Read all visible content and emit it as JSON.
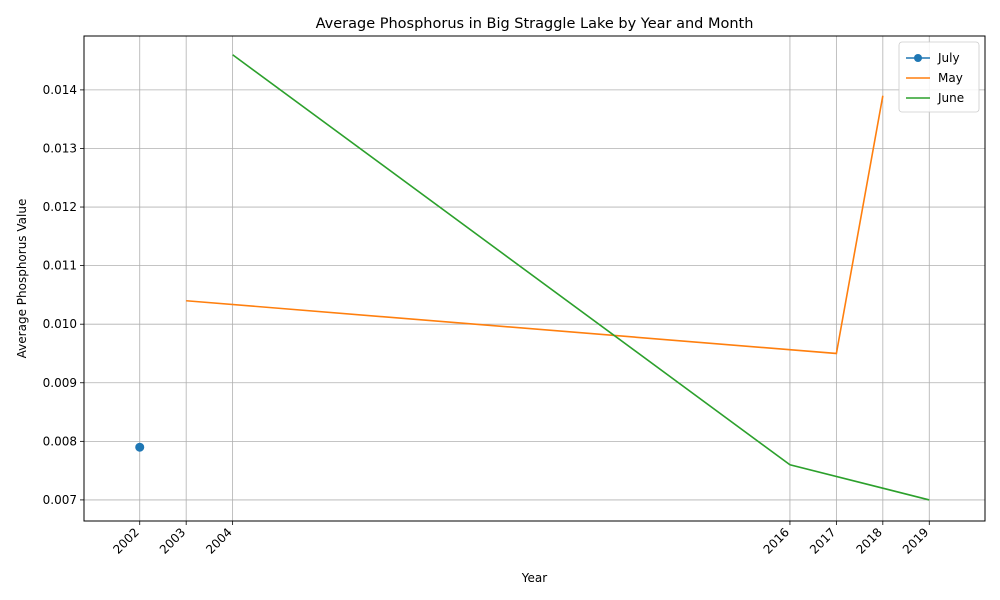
{
  "chart_data": {
    "type": "line",
    "title": "Average Phosphorus in Big Straggle Lake by Year and Month",
    "xlabel": "Year",
    "ylabel": "Average Phosphorus Value",
    "xticks": [
      2002,
      2003,
      2004,
      2016,
      2017,
      2018,
      2019
    ],
    "xtick_labels": [
      "2002",
      "2003",
      "2004",
      "2016",
      "2017",
      "2018",
      "2019"
    ],
    "yticks": [
      0.007,
      0.008,
      0.009,
      0.01,
      0.011,
      0.012,
      0.013,
      0.014
    ],
    "ytick_labels": [
      "0.007",
      "0.008",
      "0.009",
      "0.010",
      "0.011",
      "0.012",
      "0.013",
      "0.014"
    ],
    "xlim": [
      2000.8,
      2020.2
    ],
    "ylim": [
      0.00664,
      0.01492
    ],
    "grid": true,
    "legend_position": "top-right",
    "series": [
      {
        "name": "July",
        "color": "#1f77b4",
        "marker": "circle",
        "x": [
          2002
        ],
        "y": [
          0.0079
        ]
      },
      {
        "name": "May",
        "color": "#ff7f0e",
        "marker": "none",
        "x": [
          2003,
          2017,
          2018
        ],
        "y": [
          0.0104,
          0.0095,
          0.0139
        ]
      },
      {
        "name": "June",
        "color": "#2ca02c",
        "marker": "none",
        "x": [
          2004,
          2016,
          2019
        ],
        "y": [
          0.0146,
          0.0076,
          0.007
        ]
      }
    ]
  }
}
